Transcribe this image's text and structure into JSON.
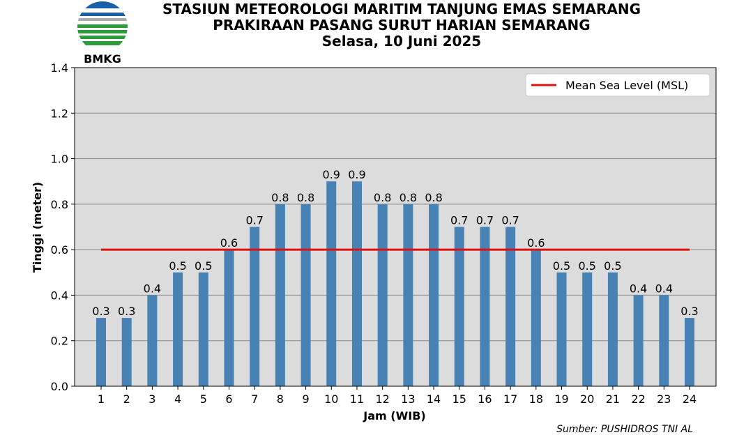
{
  "header": {
    "logo_text": "BMKG",
    "title_line1": "STASIUN METEOROLOGI MARITIM TANJUNG EMAS SEMARANG",
    "title_line2": "PRAKIRAAN PASANG SURUT HARIAN SEMARANG",
    "title_line3": "Selasa, 10 Juni 2025"
  },
  "source": "Sumber: PUSHIDROS TNI AL",
  "colors": {
    "bar": "#4682b4",
    "msl_line": "#dd1111",
    "plot_background": "#dcdcdc",
    "grid": "#888888"
  },
  "chart_data": {
    "type": "bar",
    "xlabel": "Jam (WIB)",
    "ylabel": "Tinggi (meter)",
    "ylim": [
      0,
      1.4
    ],
    "yticks": [
      "0.0",
      "0.2",
      "0.4",
      "0.6",
      "0.8",
      "1.0",
      "1.2",
      "1.4"
    ],
    "grid": "horizontal",
    "categories": [
      "1",
      "2",
      "3",
      "4",
      "5",
      "6",
      "7",
      "8",
      "9",
      "10",
      "11",
      "12",
      "13",
      "14",
      "15",
      "16",
      "17",
      "18",
      "19",
      "20",
      "21",
      "22",
      "23",
      "24"
    ],
    "values": [
      0.3,
      0.3,
      0.4,
      0.5,
      0.5,
      0.6,
      0.7,
      0.8,
      0.8,
      0.9,
      0.9,
      0.8,
      0.8,
      0.8,
      0.7,
      0.7,
      0.7,
      0.6,
      0.5,
      0.5,
      0.5,
      0.4,
      0.4,
      0.3
    ],
    "data_labels": [
      "0.3",
      "0.3",
      "0.4",
      "0.5",
      "0.5",
      "0.6",
      "0.7",
      "0.8",
      "0.8",
      "0.9",
      "0.9",
      "0.8",
      "0.8",
      "0.8",
      "0.7",
      "0.7",
      "0.7",
      "0.6",
      "0.5",
      "0.5",
      "0.5",
      "0.4",
      "0.4",
      "0.3"
    ],
    "reference_line": {
      "name": "Mean Sea Level (MSL)",
      "value": 0.6,
      "x_from": "1",
      "x_to": "24"
    },
    "legend_position": "top-right"
  }
}
